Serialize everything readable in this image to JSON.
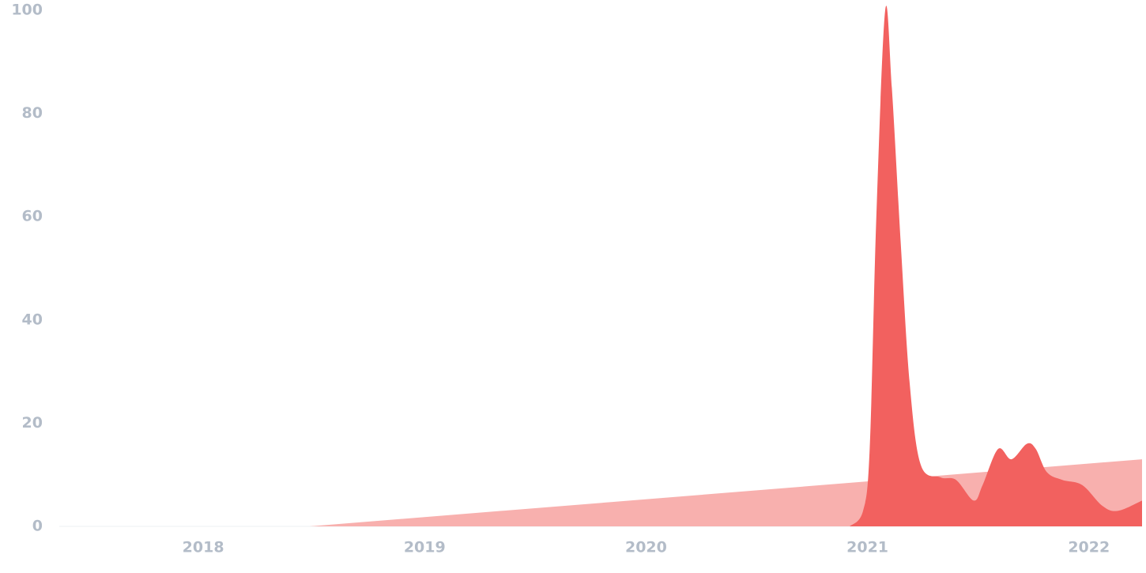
{
  "chart_data": {
    "type": "area",
    "series": [
      {
        "color": "#f8b0ae",
        "x": [
          2017.35,
          2018.48,
          2022.24
        ],
        "values": [
          0,
          0,
          13
        ]
      },
      {
        "color": "#f2615f",
        "x": [
          2020.92,
          2020.98,
          2021.01,
          2021.04,
          2021.08,
          2021.11,
          2021.15,
          2021.19,
          2021.24,
          2021.33,
          2021.4,
          2021.48,
          2021.52,
          2021.59,
          2021.65,
          2021.72,
          2021.76,
          2021.81,
          2021.88,
          2021.97,
          2022.06,
          2022.13,
          2022.24
        ],
        "values": [
          0,
          3,
          15,
          60,
          100,
          85,
          55,
          28,
          12,
          9.5,
          9,
          5,
          8,
          15,
          13,
          16,
          15,
          10.5,
          9,
          8,
          4,
          3,
          5
        ]
      }
    ],
    "xlim": [
      2017.35,
      2022.24
    ],
    "xticks": [
      2018,
      2019,
      2020,
      2021,
      2022
    ],
    "ylim": [
      0,
      100
    ],
    "yticks": [
      0,
      20,
      40,
      60,
      80,
      100
    ],
    "grid": false
  }
}
